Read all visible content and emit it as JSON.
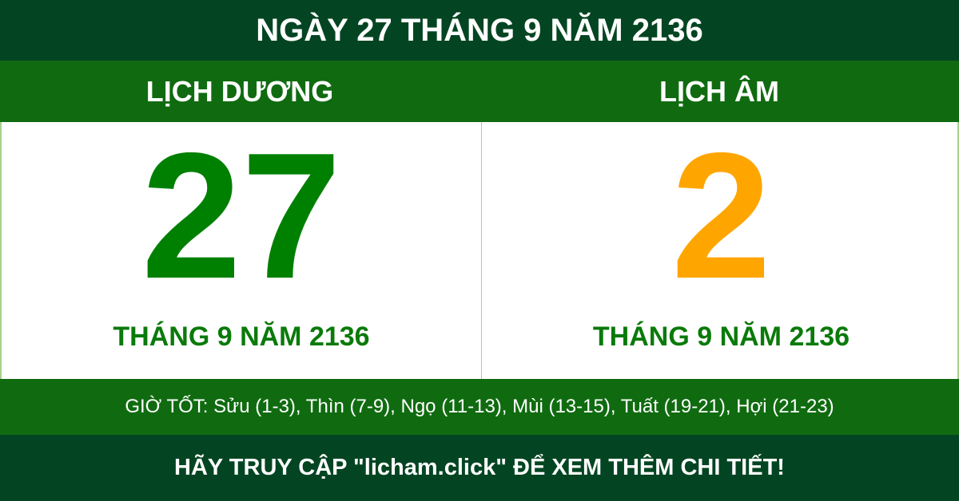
{
  "title": "NGÀY 27 THÁNG 9 NĂM 2136",
  "solar": {
    "label": "LỊCH DƯƠNG",
    "day": "27",
    "month_year": "THÁNG 9 NĂM 2136",
    "color": "#008000"
  },
  "lunar": {
    "label": "LỊCH ÂM",
    "day": "2",
    "month_year": "THÁNG 9 NĂM 2136",
    "color": "#ffa500"
  },
  "good_hours": "GIỜ TỐT: Sửu (1-3), Thìn (7-9), Ngọ (11-13), Mùi (13-15), Tuất (19-21), Hợi (21-23)",
  "footer": "HÃY TRUY CẬP \"licham.click\" ĐỂ XEM THÊM CHI TIẾT!"
}
